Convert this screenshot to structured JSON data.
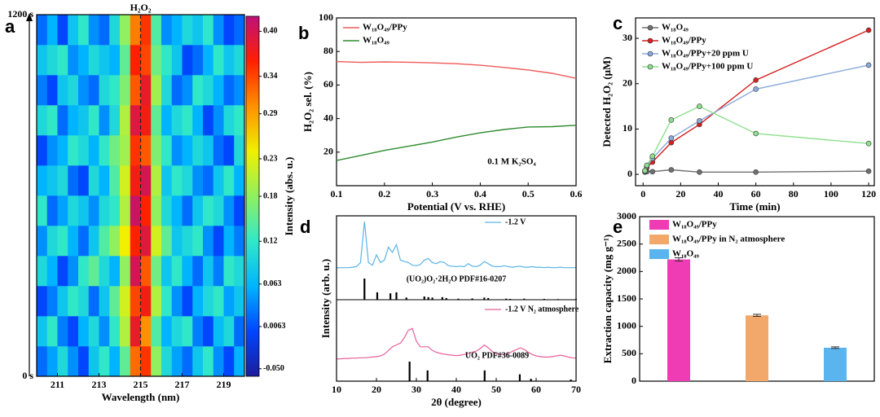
{
  "chart_data": [
    {
      "panel": "a",
      "type": "heatmap",
      "title": "H₂O₂",
      "xlabel": "Wavelength (nm)",
      "x": [
        210.25,
        210.75,
        211.25,
        211.75,
        212.25,
        212.75,
        213.25,
        213.75,
        214.25,
        214.75,
        215.25,
        215.75,
        216.25,
        216.75,
        217.25,
        217.75,
        218.25,
        218.75,
        219.25,
        219.75
      ],
      "z": [
        [
          0.02,
          0.05,
          0.1,
          0.04,
          0.0,
          0.08,
          0.12,
          0.06,
          0.15,
          0.32,
          0.35,
          0.18,
          0.1,
          0.05,
          0.02,
          0.08,
          0.12,
          0.04,
          0.0,
          0.06
        ],
        [
          0.08,
          0.12,
          0.03,
          0.0,
          0.06,
          0.1,
          0.04,
          0.12,
          0.2,
          0.38,
          0.3,
          0.14,
          0.06,
          0.1,
          0.12,
          0.03,
          0.0,
          0.07,
          0.1,
          0.02
        ],
        [
          0.0,
          0.03,
          0.08,
          0.12,
          0.1,
          0.02,
          0.08,
          0.15,
          0.22,
          0.34,
          0.37,
          0.2,
          0.12,
          0.04,
          0.0,
          0.06,
          0.1,
          0.12,
          0.05,
          0.08
        ],
        [
          0.1,
          0.06,
          0.0,
          0.04,
          0.12,
          0.15,
          0.1,
          0.06,
          0.18,
          0.4,
          0.33,
          0.16,
          0.08,
          0.12,
          0.06,
          0.02,
          0.08,
          0.03,
          0.12,
          0.1
        ],
        [
          0.04,
          0.1,
          0.12,
          0.06,
          0.02,
          0.08,
          0.14,
          0.18,
          0.24,
          0.36,
          0.39,
          0.22,
          0.15,
          0.08,
          0.1,
          0.12,
          0.04,
          0.0,
          0.06,
          0.03
        ],
        [
          0.12,
          0.02,
          0.05,
          0.1,
          0.08,
          0.04,
          0.1,
          0.12,
          0.2,
          0.41,
          0.36,
          0.18,
          0.1,
          0.06,
          0.02,
          0.08,
          0.12,
          0.1,
          0.04,
          0.0
        ],
        [
          0.06,
          0.08,
          0.1,
          0.02,
          0.0,
          0.1,
          0.06,
          0.14,
          0.22,
          0.37,
          0.4,
          0.2,
          0.08,
          0.12,
          0.1,
          0.04,
          0.02,
          0.08,
          0.12,
          0.06
        ],
        [
          0.0,
          0.04,
          0.06,
          0.12,
          0.1,
          0.06,
          0.12,
          0.16,
          0.19,
          0.35,
          0.33,
          0.17,
          0.12,
          0.04,
          0.06,
          0.1,
          0.08,
          0.02,
          0.0,
          0.1
        ],
        [
          0.1,
          0.12,
          0.02,
          0.06,
          0.08,
          0.12,
          0.04,
          0.1,
          0.2,
          0.39,
          0.37,
          0.15,
          0.06,
          0.1,
          0.12,
          0.06,
          0.0,
          0.04,
          0.1,
          0.12
        ],
        [
          0.03,
          0.0,
          0.08,
          0.1,
          0.04,
          0.02,
          0.1,
          0.12,
          0.17,
          0.33,
          0.38,
          0.19,
          0.1,
          0.02,
          0.04,
          0.12,
          0.1,
          0.06,
          0.02,
          0.04
        ],
        [
          0.08,
          0.1,
          0.12,
          0.04,
          0.06,
          0.1,
          0.08,
          0.06,
          0.15,
          0.36,
          0.34,
          0.16,
          0.12,
          0.08,
          0.0,
          0.02,
          0.06,
          0.12,
          0.08,
          0.1
        ],
        [
          0.02,
          0.06,
          0.0,
          0.08,
          0.12,
          0.04,
          0.02,
          0.1,
          0.18,
          0.31,
          0.35,
          0.14,
          0.04,
          0.06,
          0.1,
          0.08,
          0.12,
          0.04,
          0.0,
          0.02
        ]
      ],
      "xlim": [
        210,
        220
      ],
      "xticks": [
        211,
        213,
        215,
        217,
        219
      ],
      "ylim": [
        0,
        1200
      ],
      "yticks": [
        {
          "value": 0,
          "label": "0 s"
        },
        {
          "value": 1200,
          "label": "1200 s"
        }
      ],
      "zlim": [
        -0.06,
        0.42
      ],
      "zticks": [
        {
          "value": 0.4,
          "label": "0.40"
        },
        0.34,
        0.29,
        0.23,
        0.18,
        0.12,
        0.063,
        0.0063,
        {
          "value": -0.05,
          "label": "-0.050"
        }
      ],
      "zlabel": "Intensity (abs. u.)",
      "colormap": [
        "#1c1c9c",
        "#0046ff",
        "#00b4ff",
        "#30e8c8",
        "#90f060",
        "#f0f000",
        "#ff9000",
        "#ff2000",
        "#c0107a"
      ],
      "reference_line": 215
    },
    {
      "panel": "b",
      "type": "line",
      "xlabel": "Potential (V vs. RHE)",
      "ylabel": "H₂O₂ sel. (%)",
      "x": [
        0.1,
        0.15,
        0.2,
        0.25,
        0.3,
        0.35,
        0.4,
        0.45,
        0.5,
        0.55,
        0.6
      ],
      "series": [
        {
          "name": "W₁₈O₄₉/PPy",
          "color": "#f05a5a",
          "values": [
            74,
            73.5,
            73.8,
            73.6,
            73.2,
            72.7,
            71.8,
            70.5,
            69,
            67,
            64
          ]
        },
        {
          "name": "W₁₈O₄₉",
          "color": "#2e8b2e",
          "values": [
            15,
            18,
            21,
            23.5,
            26,
            29,
            31.5,
            33.5,
            35,
            35.2,
            36
          ]
        }
      ],
      "xlim": [
        0.1,
        0.6
      ],
      "xticks": [
        0.1,
        0.2,
        0.3,
        0.4,
        0.5,
        0.6
      ],
      "ylim": [
        0,
        100
      ],
      "yticks": [
        20,
        40,
        60,
        80,
        100
      ],
      "annotation": "0.1 M K₂SO₄",
      "legend": "top-left",
      "markers": false
    },
    {
      "panel": "c",
      "type": "line",
      "xlabel": "Time (min)",
      "ylabel": "Detected H₂O₂ (μM)",
      "x": [
        1,
        2,
        5,
        15,
        30,
        60,
        120
      ],
      "series": [
        {
          "name": "W₁₈O₄₉",
          "color": "#707070",
          "values": [
            0.5,
            0.6,
            0.6,
            1,
            0.5,
            0.5,
            0.7
          ]
        },
        {
          "name": "W₁₈O₄₉/PPy",
          "color": "#d62020",
          "values": [
            0.8,
            1.5,
            2.7,
            7,
            11,
            20.8,
            31.8
          ]
        },
        {
          "name": "W₁₈O₄₉/PPy+20 ppm U",
          "color": "#8aaadc",
          "values": [
            0.7,
            1.8,
            3.5,
            8,
            11.8,
            18.8,
            24.1
          ]
        },
        {
          "name": "W₁₈O₄₉/PPy+100 ppm U",
          "color": "#8ee08e",
          "values": [
            0.8,
            2,
            4,
            12,
            15,
            9,
            6.8
          ]
        }
      ],
      "xlim": [
        -4,
        123
      ],
      "xticks": [
        0,
        20,
        40,
        60,
        80,
        100,
        120
      ],
      "ylim": [
        -2.5,
        34.5
      ],
      "yticks": [
        0,
        10,
        20,
        30
      ],
      "legend": "top-left",
      "markers": true
    },
    {
      "panel": "d",
      "type": "xrd",
      "xlabel": "2θ (degree)",
      "ylabel": "Intensity (arb. u.)",
      "x": [
        10,
        11,
        12,
        13,
        14,
        15,
        16,
        17,
        18,
        19,
        20,
        21,
        22,
        23,
        24,
        25,
        26,
        27,
        28,
        29,
        30,
        31,
        32,
        33,
        34,
        35,
        36,
        37,
        38,
        39,
        40,
        41,
        42,
        43,
        44,
        45,
        46,
        47,
        48,
        49,
        50,
        51,
        52,
        53,
        54,
        55,
        56,
        57,
        58,
        59,
        60,
        61,
        62,
        63,
        64,
        65,
        66,
        67,
        68,
        69,
        70
      ],
      "series": [
        {
          "name": "-1.2 V",
          "color": "#5ab4e6",
          "values": [
            0.1,
            0.1,
            0.1,
            0.1,
            0.11,
            0.12,
            0.2,
            1.0,
            0.2,
            0.15,
            0.35,
            0.2,
            0.25,
            0.5,
            0.4,
            0.55,
            0.25,
            0.22,
            0.2,
            0.15,
            0.14,
            0.16,
            0.25,
            0.28,
            0.2,
            0.18,
            0.22,
            0.2,
            0.14,
            0.13,
            0.12,
            0.13,
            0.12,
            0.18,
            0.13,
            0.12,
            0.15,
            0.22,
            0.18,
            0.13,
            0.12,
            0.12,
            0.14,
            0.12,
            0.11,
            0.12,
            0.13,
            0.11,
            0.11,
            0.12,
            0.11,
            0.11,
            0.1,
            0.11,
            0.1,
            0.1,
            0.11,
            0.1,
            0.1,
            0.1,
            0.1
          ]
        },
        {
          "name": "-1.2 V N₂ atmosphere",
          "color": "#e8609a",
          "values": [
            0.12,
            0.12,
            0.13,
            0.13,
            0.14,
            0.14,
            0.15,
            0.15,
            0.16,
            0.17,
            0.18,
            0.2,
            0.25,
            0.35,
            0.45,
            0.5,
            0.55,
            0.7,
            0.9,
            0.95,
            0.6,
            0.45,
            0.45,
            0.45,
            0.35,
            0.3,
            0.27,
            0.25,
            0.23,
            0.22,
            0.21,
            0.22,
            0.24,
            0.27,
            0.3,
            0.33,
            0.4,
            0.5,
            0.42,
            0.32,
            0.26,
            0.24,
            0.24,
            0.27,
            0.32,
            0.37,
            0.42,
            0.38,
            0.3,
            0.24,
            0.2,
            0.18,
            0.17,
            0.17,
            0.18,
            0.2,
            0.22,
            0.2,
            0.17,
            0.15,
            0.14
          ]
        }
      ],
      "references": [
        {
          "name": "(UO₂)O₂·2H₂O PDF#16-0207",
          "positions": [
            17,
            20.2,
            23.5,
            25,
            27.5,
            32,
            33,
            34,
            36.5,
            37.5,
            40.5,
            44,
            47,
            48,
            52.5,
            53.5,
            57,
            62,
            65.5,
            70
          ],
          "heights": [
            1,
            0.35,
            0.3,
            0.35,
            0.1,
            0.15,
            0.12,
            0.1,
            0.12,
            0.08,
            0.05,
            0.06,
            0.1,
            0.08,
            0.05,
            0.04,
            0.05,
            0.04,
            0.03,
            0.03
          ]
        },
        {
          "name": "UO₂ PDF#36-0089",
          "positions": [
            28.3,
            32.8,
            47.1,
            55.9,
            58.7,
            68.7
          ],
          "heights": [
            1,
            0.55,
            0.55,
            0.35,
            0.12,
            0.08
          ]
        }
      ],
      "xlim": [
        10,
        70
      ],
      "xticks": [
        10,
        20,
        30,
        40,
        50,
        60,
        70
      ]
    },
    {
      "panel": "e",
      "type": "bar",
      "ylabel": "Extraction capacity (mg g⁻¹)",
      "categories": [
        "W₁₈O₄₉/PPy",
        "W₁₈O₄₉/PPy in N₂ atmosphere",
        "W₁₈O₄₉"
      ],
      "values": [
        2220,
        1200,
        610
      ],
      "errors": [
        30,
        20,
        15
      ],
      "colors": [
        "#f03cb4",
        "#f2a86a",
        "#5ab4ee"
      ],
      "ylim": [
        0,
        3000
      ],
      "yticks": [
        0,
        500,
        1000,
        1500,
        2000,
        2500,
        3000
      ],
      "legend": "top-left"
    }
  ]
}
